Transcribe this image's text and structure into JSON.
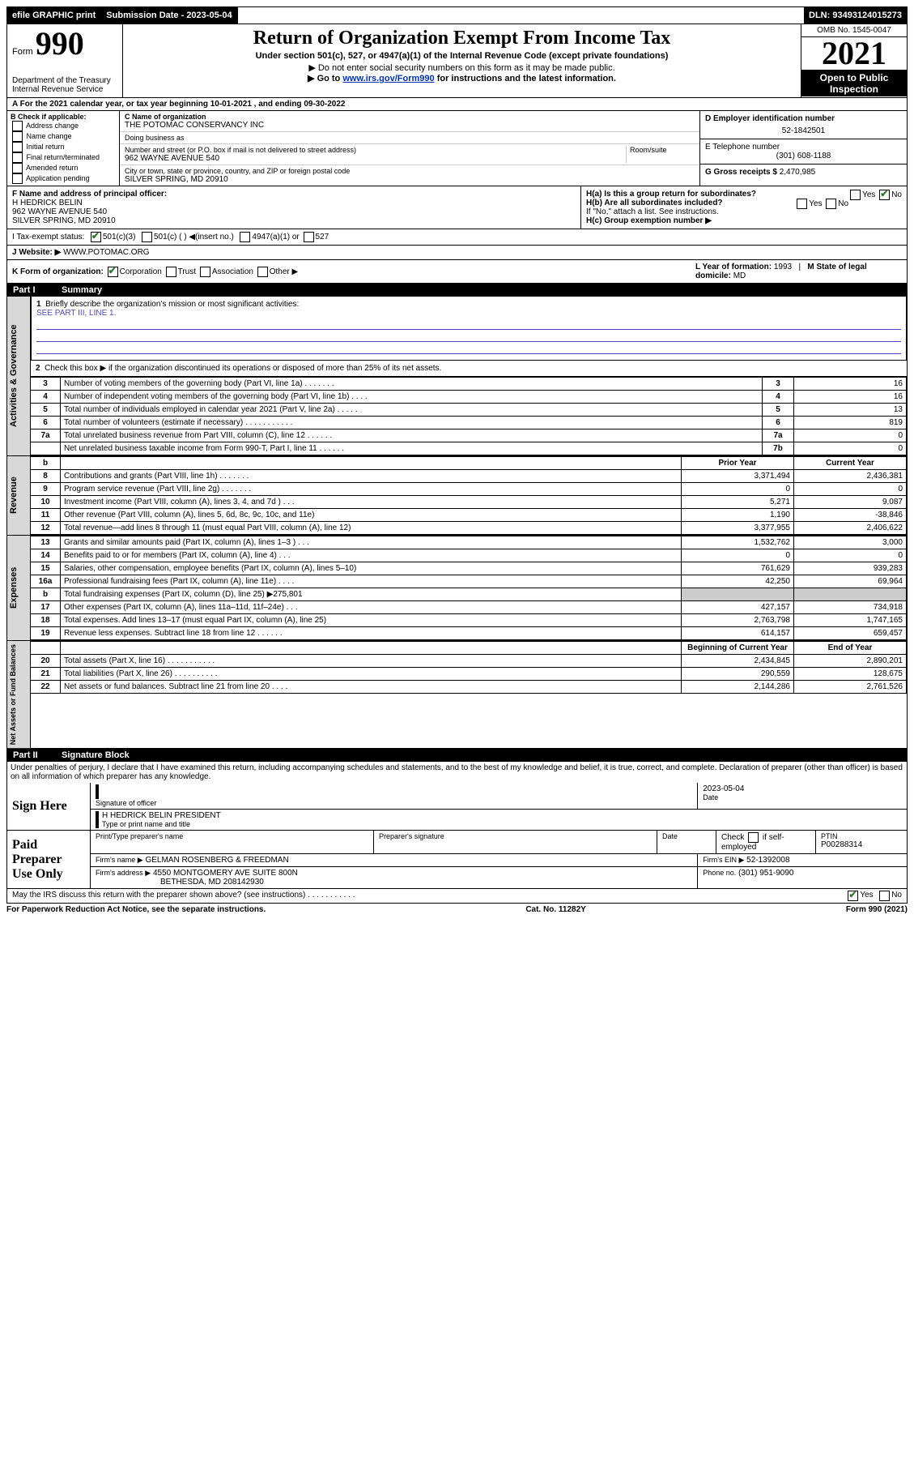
{
  "topbar": {
    "efile": "efile GRAPHIC print",
    "submission_label": "Submission Date - 2023-05-04",
    "dln": "DLN: 93493124015273"
  },
  "header": {
    "form_label": "Form",
    "form_number": "990",
    "title": "Return of Organization Exempt From Income Tax",
    "sub1": "Under section 501(c), 527, or 4947(a)(1) of the Internal Revenue Code (except private foundations)",
    "sub2": "Do not enter social security numbers on this form as it may be made public.",
    "sub3_pre": "Go to ",
    "sub3_link": "www.irs.gov/Form990",
    "sub3_post": " for instructions and the latest information.",
    "dept": "Department of the Treasury",
    "irs": "Internal Revenue Service",
    "omb": "OMB No. 1545-0047",
    "year": "2021",
    "open": "Open to Public Inspection"
  },
  "row_a": "A  For the 2021 calendar year, or tax year beginning 10-01-2021      , and ending 09-30-2022",
  "section_b": {
    "label": "B Check if applicable:",
    "items": [
      "Address change",
      "Name change",
      "Initial return",
      "Final return/terminated",
      "Amended return",
      "Application pending"
    ]
  },
  "section_c": {
    "name_lbl": "C Name of organization",
    "name": "THE POTOMAC CONSERVANCY INC",
    "dba_lbl": "Doing business as",
    "dba": "",
    "street_lbl": "Number and street (or P.O. box if mail is not delivered to street address)",
    "room_lbl": "Room/suite",
    "street": "962 WAYNE AVENUE 540",
    "city_lbl": "City or town, state or province, country, and ZIP or foreign postal code",
    "city": "SILVER SPRING, MD  20910"
  },
  "section_d": {
    "ein_lbl": "D Employer identification number",
    "ein": "52-1842501",
    "phone_lbl": "E Telephone number",
    "phone": "(301) 608-1188",
    "gross_lbl": "G Gross receipts $",
    "gross": "2,470,985"
  },
  "row_f": {
    "label": "F  Name and address of principal officer:",
    "name": "H HEDRICK BELIN",
    "addr1": "962 WAYNE AVENUE 540",
    "addr2": "SILVER SPRING, MD  20910",
    "ha": "H(a)  Is this a group return for subordinates?",
    "hb": "H(b)  Are all subordinates included?",
    "hb_note": "If \"No,\" attach a list. See instructions.",
    "hc": "H(c)  Group exemption number ▶",
    "yes": "Yes",
    "no": "No"
  },
  "row_i": {
    "label": "I   Tax-exempt status:",
    "opt1": "501(c)(3)",
    "opt2": "501(c) (   ) ◀(insert no.)",
    "opt3": "4947(a)(1) or",
    "opt4": "527"
  },
  "row_j": {
    "label": "J   Website: ▶",
    "value": "WWW.POTOMAC.ORG"
  },
  "row_k": {
    "label": "K Form of organization:",
    "opts": [
      "Corporation",
      "Trust",
      "Association",
      "Other ▶"
    ],
    "l_label": "L Year of formation: ",
    "l_val": "1993",
    "m_label": "M State of legal domicile:",
    "m_val": "MD"
  },
  "part1": {
    "pn": "Part I",
    "title": "Summary",
    "line1": "Briefly describe the organization's mission or most significant activities:",
    "line1_val": "SEE PART III, LINE 1.",
    "line2": "Check this box ▶        if the organization discontinued its operations or disposed of more than 25% of its net assets.",
    "rows": [
      {
        "n": "3",
        "t": "Number of voting members of the governing body (Part VI, line 1a)   .   .   .   .   .   .   .",
        "rn": "3",
        "v": "16"
      },
      {
        "n": "4",
        "t": "Number of independent voting members of the governing body (Part VI, line 1b)   .   .   .   .",
        "rn": "4",
        "v": "16"
      },
      {
        "n": "5",
        "t": "Total number of individuals employed in calendar year 2021 (Part V, line 2a)   .   .   .   .   .",
        "rn": "5",
        "v": "13"
      },
      {
        "n": "6",
        "t": "Total number of volunteers (estimate if necessary)   .   .   .   .   .   .   .   .   .   .   .",
        "rn": "6",
        "v": "819"
      },
      {
        "n": "7a",
        "t": "Total unrelated business revenue from Part VIII, column (C), line 12   .   .   .   .   .   .",
        "rn": "7a",
        "v": "0"
      },
      {
        "n": "",
        "t": "Net unrelated business taxable income from Form 990-T, Part I, line 11   .   .   .   .   .   .",
        "rn": "7b",
        "v": "0"
      }
    ],
    "rev_hdr_prior": "Prior Year",
    "rev_hdr_cur": "Current Year",
    "revenue": [
      {
        "n": "8",
        "t": "Contributions and grants (Part VIII, line 1h)   .   .   .   .   .   .   .",
        "p": "3,371,494",
        "c": "2,436,381"
      },
      {
        "n": "9",
        "t": "Program service revenue (Part VIII, line 2g)   .   .   .   .   .   .   .",
        "p": "0",
        "c": "0"
      },
      {
        "n": "10",
        "t": "Investment income (Part VIII, column (A), lines 3, 4, and 7d )   .   .   .",
        "p": "5,271",
        "c": "9,087"
      },
      {
        "n": "11",
        "t": "Other revenue (Part VIII, column (A), lines 5, 6d, 8c, 9c, 10c, and 11e)",
        "p": "1,190",
        "c": "-38,846"
      },
      {
        "n": "12",
        "t": "Total revenue—add lines 8 through 11 (must equal Part VIII, column (A), line 12)",
        "p": "3,377,955",
        "c": "2,406,622"
      }
    ],
    "expenses": [
      {
        "n": "13",
        "t": "Grants and similar amounts paid (Part IX, column (A), lines 1–3 )   .   .   .",
        "p": "1,532,762",
        "c": "3,000"
      },
      {
        "n": "14",
        "t": "Benefits paid to or for members (Part IX, column (A), line 4)   .   .   .",
        "p": "0",
        "c": "0"
      },
      {
        "n": "15",
        "t": "Salaries, other compensation, employee benefits (Part IX, column (A), lines 5–10)",
        "p": "761,629",
        "c": "939,283"
      },
      {
        "n": "16a",
        "t": "Professional fundraising fees (Part IX, column (A), line 11e)   .   .   .   .",
        "p": "42,250",
        "c": "69,964"
      },
      {
        "n": "b",
        "t": "Total fundraising expenses (Part IX, column (D), line 25) ▶275,801",
        "p": "gray",
        "c": "gray"
      },
      {
        "n": "17",
        "t": "Other expenses (Part IX, column (A), lines 11a–11d, 11f–24e)   .   .   .",
        "p": "427,157",
        "c": "734,918"
      },
      {
        "n": "18",
        "t": "Total expenses. Add lines 13–17 (must equal Part IX, column (A), line 25)",
        "p": "2,763,798",
        "c": "1,747,165"
      },
      {
        "n": "19",
        "t": "Revenue less expenses. Subtract line 18 from line 12   .   .   .   .   .   .",
        "p": "614,157",
        "c": "659,457"
      }
    ],
    "net_hdr_prior": "Beginning of Current Year",
    "net_hdr_cur": "End of Year",
    "netassets": [
      {
        "n": "20",
        "t": "Total assets (Part X, line 16)   .   .   .   .   .   .   .   .   .   .   .",
        "p": "2,434,845",
        "c": "2,890,201"
      },
      {
        "n": "21",
        "t": "Total liabilities (Part X, line 26)   .   .   .   .   .   .   .   .   .   .",
        "p": "290,559",
        "c": "128,675"
      },
      {
        "n": "22",
        "t": "Net assets or fund balances. Subtract line 21 from line 20   .   .   .   .",
        "p": "2,144,286",
        "c": "2,761,526"
      }
    ]
  },
  "part2": {
    "pn": "Part II",
    "title": "Signature Block",
    "declaration": "Under penalties of perjury, I declare that I have examined this return, including accompanying schedules and statements, and to the best of my knowledge and belief, it is true, correct, and complete. Declaration of preparer (other than officer) is based on all information of which preparer has any knowledge."
  },
  "sign": {
    "label": "Sign Here",
    "sig_lbl": "Signature of officer",
    "date_lbl": "Date",
    "date": "2023-05-04",
    "name": "H HEDRICK BELIN  PRESIDENT",
    "name_lbl": "Type or print name and title"
  },
  "preparer": {
    "label": "Paid Preparer Use Only",
    "c1": "Print/Type preparer's name",
    "c2": "Preparer's signature",
    "c3": "Date",
    "c4_pre": "Check",
    "c4_post": "if self-employed",
    "c5_lbl": "PTIN",
    "c5": "P00288314",
    "firm_name_lbl": "Firm's name     ▶",
    "firm_name": "GELMAN ROSENBERG & FREEDMAN",
    "firm_ein_lbl": "Firm's EIN ▶",
    "firm_ein": "52-1392008",
    "firm_addr_lbl": "Firm's address ▶",
    "firm_addr1": "4550 MONTGOMERY AVE SUITE 800N",
    "firm_addr2": "BETHESDA, MD  208142930",
    "phone_lbl": "Phone no.",
    "phone": "(301) 951-9090"
  },
  "discuss": "May the IRS discuss this return with the preparer shown above? (see instructions)   .   .   .   .   .   .   .   .   .   .   .",
  "footer": {
    "left": "For Paperwork Reduction Act Notice, see the separate instructions.",
    "mid": "Cat. No. 11282Y",
    "right": "Form 990 (2021)"
  },
  "vlabels": {
    "gov": "Activities & Governance",
    "rev": "Revenue",
    "exp": "Expenses",
    "net": "Net Assets or Fund Balances"
  }
}
